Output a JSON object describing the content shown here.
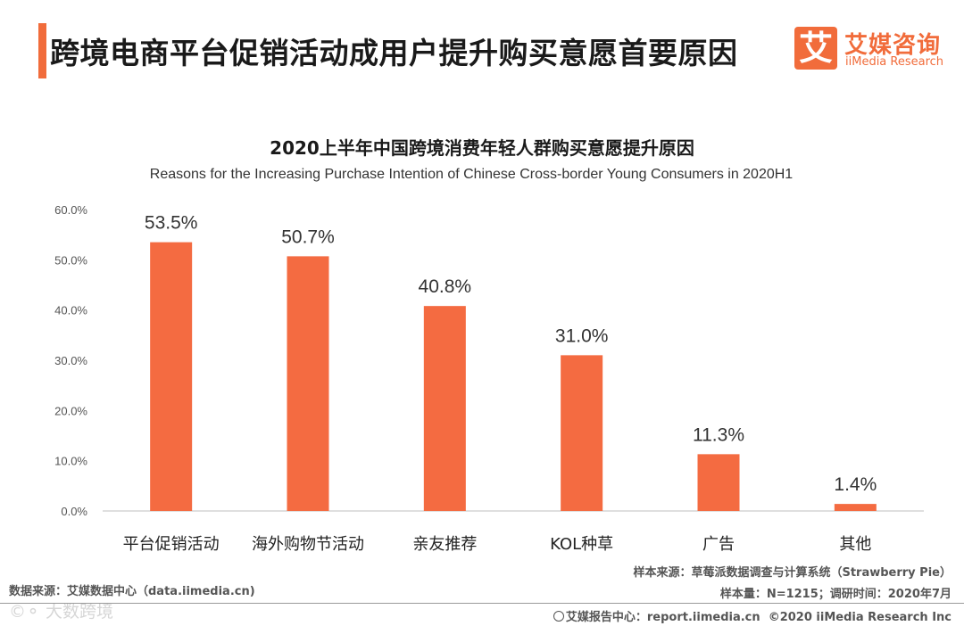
{
  "page": {
    "title": "跨境电商平台促销活动成用户提升购买意愿首要原因"
  },
  "logo": {
    "glyph": "艾",
    "cn": "艾媒咨询",
    "en": "iiMedia Research"
  },
  "colors": {
    "accent": "#f16c3b",
    "bar": "#f46b41",
    "axis": "#bfbfbf"
  },
  "chart_data": {
    "type": "bar",
    "title": "2020上半年中国跨境消费年轻人群购买意愿提升原因",
    "subtitle": "Reasons for the Increasing Purchase Intention of Chinese Cross-border Young Consumers in 2020H1",
    "categories": [
      "平台促销活动",
      "海外购物节活动",
      "亲友推荐",
      "KOL种草",
      "广告",
      "其他"
    ],
    "values": [
      53.5,
      50.7,
      40.8,
      31.0,
      11.3,
      1.4
    ],
    "value_labels": [
      "53.5%",
      "50.7%",
      "40.8%",
      "31.0%",
      "11.3%",
      "1.4%"
    ],
    "yticks": [
      "0.0%",
      "10.0%",
      "20.0%",
      "30.0%",
      "40.0%",
      "50.0%",
      "60.0%"
    ],
    "ylim": [
      0,
      60
    ],
    "xlabel": "",
    "ylabel": "",
    "grid": false,
    "legend": "none"
  },
  "footer": {
    "data_source": "数据来源：艾媒数据中心（data.iimedia.cn)",
    "sample_source": "样本来源：草莓派数据调查与计算系统（Strawberry Pie）",
    "sample_size": "样本量：N=1215；调研时间：2020年7月",
    "report_center": "艾媒报告中心：report.iimedia.cn",
    "copyright": "©2020  iiMedia Research  Inc",
    "watermark": "©⚬ 大数跨境"
  }
}
